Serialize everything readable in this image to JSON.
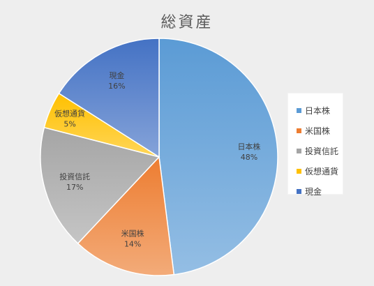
{
  "chart_data": {
    "type": "pie",
    "title": "総資産",
    "categories": [
      "日本株",
      "米国株",
      "投資信託",
      "仮想通貨",
      "現金"
    ],
    "values": [
      48,
      14,
      17,
      5,
      16
    ],
    "value_labels": [
      "48%",
      "14%",
      "17%",
      "5%",
      "16%"
    ],
    "colors": [
      "#5b9bd5",
      "#ed7d31",
      "#a5a5a5",
      "#ffc000",
      "#4472c4"
    ],
    "legend_position": "right",
    "start_angle": "12 o'clock",
    "direction": "clockwise"
  }
}
